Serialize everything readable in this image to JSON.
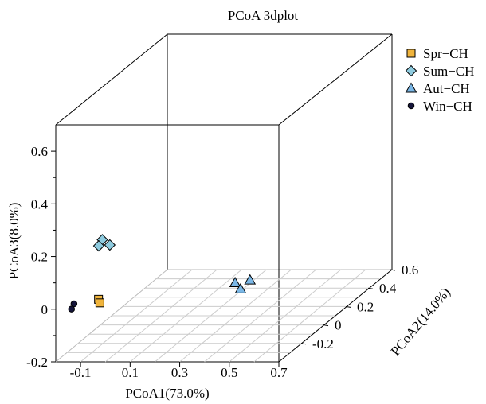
{
  "chart_data": {
    "type": "scatter",
    "title": "PCoA 3dplot",
    "xlabel": "PCoA1(73.0%)",
    "ylabel": "PCoA2(14.0%)",
    "zlabel": "PCoA3(8.0%)",
    "xlim": [
      -0.2,
      0.7
    ],
    "ylim": [
      -0.4,
      0.6
    ],
    "zlim": [
      -0.2,
      0.7
    ],
    "x_ticks": [
      "-0.1",
      "0.1",
      "0.3",
      "0.5",
      "0.7"
    ],
    "y_ticks": [
      "-0.2",
      "0",
      "0.2",
      "0.4",
      "0.6"
    ],
    "z_ticks": [
      "-0.2",
      "0",
      "0.2",
      "0.4",
      "0.6"
    ],
    "legend_position": "top-right",
    "series": [
      {
        "name": "Spr−CH",
        "marker": "square",
        "color": "#f0b43c",
        "points": [
          {
            "x": -0.05,
            "y": -0.35,
            "z": 0.02
          },
          {
            "x": -0.04,
            "y": -0.36,
            "z": 0.01
          }
        ]
      },
      {
        "name": "Sum−CH",
        "marker": "diamond",
        "color": "#8ecbdf",
        "points": [
          {
            "x": -0.03,
            "y": -0.36,
            "z": 0.25
          },
          {
            "x": -0.04,
            "y": -0.37,
            "z": 0.23
          },
          {
            "x": 0.0,
            "y": -0.36,
            "z": 0.23
          }
        ]
      },
      {
        "name": "Aut−CH",
        "marker": "triangle",
        "color": "#7ab7e6",
        "points": [
          {
            "x": 0.42,
            "y": -0.17,
            "z": 0.02
          },
          {
            "x": 0.46,
            "y": -0.21,
            "z": 0.01
          },
          {
            "x": 0.48,
            "y": -0.17,
            "z": 0.03
          }
        ]
      },
      {
        "name": "Win−CH",
        "marker": "circle",
        "color": "#15153a",
        "points": [
          {
            "x": -0.14,
            "y": -0.37,
            "z": 0.01
          },
          {
            "x": -0.15,
            "y": -0.37,
            "z": -0.01
          }
        ]
      }
    ]
  }
}
